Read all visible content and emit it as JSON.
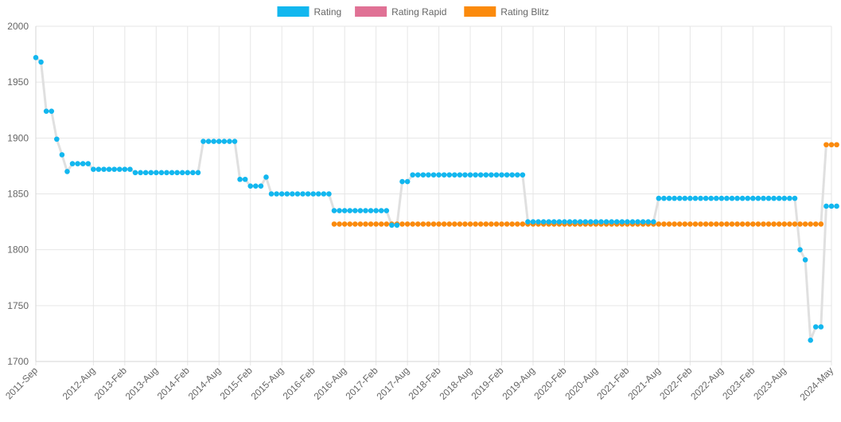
{
  "chart_data": {
    "type": "line",
    "title": "",
    "xlabel": "",
    "ylabel": "",
    "ylim": [
      1700,
      2000
    ],
    "yticks": [
      1700,
      1750,
      1800,
      1850,
      1900,
      1950,
      2000
    ],
    "x_start": "2011-Sep",
    "x_end": "2024-May",
    "xtick_labels": [
      "2011-Sep",
      "2012-Aug",
      "2013-Feb",
      "2013-Aug",
      "2014-Feb",
      "2014-Aug",
      "2015-Feb",
      "2015-Aug",
      "2016-Feb",
      "2016-Aug",
      "2017-Feb",
      "2017-Aug",
      "2018-Feb",
      "2018-Aug",
      "2019-Feb",
      "2019-Aug",
      "2020-Feb",
      "2020-Aug",
      "2021-Feb",
      "2021-Aug",
      "2022-Feb",
      "2022-Aug",
      "2023-Feb",
      "2023-Aug",
      "2024-May"
    ],
    "grid": true,
    "legend_position": "top-center",
    "series": [
      {
        "name": "Rating",
        "color": "#12b7ef",
        "line_color": "#e0e0e0",
        "points": [
          [
            "2011-Sep",
            1972
          ],
          [
            "2011-Oct",
            1968
          ],
          [
            "2011-Nov",
            1924
          ],
          [
            "2011-Dec",
            1924
          ],
          [
            "2012-Jan",
            1899
          ],
          [
            "2012-Feb",
            1885
          ],
          [
            "2012-Mar",
            1870
          ],
          [
            "2012-Apr",
            1877
          ],
          [
            "2012-May",
            1877
          ],
          [
            "2012-Jun",
            1877
          ],
          [
            "2012-Jul",
            1877
          ],
          [
            "2012-Aug",
            1872
          ],
          [
            "2012-Sep",
            1872
          ],
          [
            "2012-Oct",
            1872
          ],
          [
            "2012-Nov",
            1872
          ],
          [
            "2012-Dec",
            1872
          ],
          [
            "2013-Jan",
            1872
          ],
          [
            "2013-Feb",
            1872
          ],
          [
            "2013-Mar",
            1872
          ],
          [
            "2013-Apr",
            1869
          ],
          [
            "2013-May",
            1869
          ],
          [
            "2013-Jun",
            1869
          ],
          [
            "2013-Jul",
            1869
          ],
          [
            "2013-Aug",
            1869
          ],
          [
            "2013-Sep",
            1869
          ],
          [
            "2013-Oct",
            1869
          ],
          [
            "2013-Nov",
            1869
          ],
          [
            "2013-Dec",
            1869
          ],
          [
            "2014-Jan",
            1869
          ],
          [
            "2014-Feb",
            1869
          ],
          [
            "2014-Mar",
            1869
          ],
          [
            "2014-Apr",
            1869
          ],
          [
            "2014-May",
            1897
          ],
          [
            "2014-Jun",
            1897
          ],
          [
            "2014-Jul",
            1897
          ],
          [
            "2014-Aug",
            1897
          ],
          [
            "2014-Sep",
            1897
          ],
          [
            "2014-Oct",
            1897
          ],
          [
            "2014-Nov",
            1897
          ],
          [
            "2014-Dec",
            1863
          ],
          [
            "2015-Jan",
            1863
          ],
          [
            "2015-Feb",
            1857
          ],
          [
            "2015-Mar",
            1857
          ],
          [
            "2015-Apr",
            1857
          ],
          [
            "2015-May",
            1865
          ],
          [
            "2015-Jun",
            1850
          ],
          [
            "2015-Jul",
            1850
          ],
          [
            "2015-Aug",
            1850
          ],
          [
            "2015-Sep",
            1850
          ],
          [
            "2015-Oct",
            1850
          ],
          [
            "2015-Nov",
            1850
          ],
          [
            "2015-Dec",
            1850
          ],
          [
            "2016-Jan",
            1850
          ],
          [
            "2016-Feb",
            1850
          ],
          [
            "2016-Mar",
            1850
          ],
          [
            "2016-Apr",
            1850
          ],
          [
            "2016-May",
            1850
          ],
          [
            "2016-Jun",
            1835
          ],
          [
            "2016-Jul",
            1835
          ],
          [
            "2016-Aug",
            1835
          ],
          [
            "2016-Sep",
            1835
          ],
          [
            "2016-Oct",
            1835
          ],
          [
            "2016-Nov",
            1835
          ],
          [
            "2016-Dec",
            1835
          ],
          [
            "2017-Jan",
            1835
          ],
          [
            "2017-Feb",
            1835
          ],
          [
            "2017-Mar",
            1835
          ],
          [
            "2017-Apr",
            1835
          ],
          [
            "2017-May",
            1822
          ],
          [
            "2017-Jun",
            1822
          ],
          [
            "2017-Jul",
            1861
          ],
          [
            "2017-Aug",
            1861
          ],
          [
            "2017-Sep",
            1867
          ],
          [
            "2017-Oct",
            1867
          ],
          [
            "2017-Nov",
            1867
          ],
          [
            "2017-Dec",
            1867
          ],
          [
            "2018-Jan",
            1867
          ],
          [
            "2018-Feb",
            1867
          ],
          [
            "2018-Mar",
            1867
          ],
          [
            "2018-Apr",
            1867
          ],
          [
            "2018-May",
            1867
          ],
          [
            "2018-Jun",
            1867
          ],
          [
            "2018-Jul",
            1867
          ],
          [
            "2018-Aug",
            1867
          ],
          [
            "2018-Sep",
            1867
          ],
          [
            "2018-Oct",
            1867
          ],
          [
            "2018-Nov",
            1867
          ],
          [
            "2018-Dec",
            1867
          ],
          [
            "2019-Jan",
            1867
          ],
          [
            "2019-Feb",
            1867
          ],
          [
            "2019-Mar",
            1867
          ],
          [
            "2019-Apr",
            1867
          ],
          [
            "2019-May",
            1867
          ],
          [
            "2019-Jun",
            1867
          ],
          [
            "2019-Jul",
            1825
          ],
          [
            "2019-Aug",
            1825
          ],
          [
            "2019-Sep",
            1825
          ],
          [
            "2019-Oct",
            1825
          ],
          [
            "2019-Nov",
            1825
          ],
          [
            "2019-Dec",
            1825
          ],
          [
            "2020-Jan",
            1825
          ],
          [
            "2020-Feb",
            1825
          ],
          [
            "2020-Mar",
            1825
          ],
          [
            "2020-Apr",
            1825
          ],
          [
            "2020-May",
            1825
          ],
          [
            "2020-Jun",
            1825
          ],
          [
            "2020-Jul",
            1825
          ],
          [
            "2020-Aug",
            1825
          ],
          [
            "2020-Sep",
            1825
          ],
          [
            "2020-Oct",
            1825
          ],
          [
            "2020-Nov",
            1825
          ],
          [
            "2020-Dec",
            1825
          ],
          [
            "2021-Jan",
            1825
          ],
          [
            "2021-Feb",
            1825
          ],
          [
            "2021-Mar",
            1825
          ],
          [
            "2021-Apr",
            1825
          ],
          [
            "2021-May",
            1825
          ],
          [
            "2021-Jun",
            1825
          ],
          [
            "2021-Jul",
            1825
          ],
          [
            "2021-Aug",
            1846
          ],
          [
            "2021-Sep",
            1846
          ],
          [
            "2021-Oct",
            1846
          ],
          [
            "2021-Nov",
            1846
          ],
          [
            "2021-Dec",
            1846
          ],
          [
            "2022-Jan",
            1846
          ],
          [
            "2022-Feb",
            1846
          ],
          [
            "2022-Mar",
            1846
          ],
          [
            "2022-Apr",
            1846
          ],
          [
            "2022-May",
            1846
          ],
          [
            "2022-Jun",
            1846
          ],
          [
            "2022-Jul",
            1846
          ],
          [
            "2022-Aug",
            1846
          ],
          [
            "2022-Sep",
            1846
          ],
          [
            "2022-Oct",
            1846
          ],
          [
            "2022-Nov",
            1846
          ],
          [
            "2022-Dec",
            1846
          ],
          [
            "2023-Jan",
            1846
          ],
          [
            "2023-Feb",
            1846
          ],
          [
            "2023-Mar",
            1846
          ],
          [
            "2023-Apr",
            1846
          ],
          [
            "2023-May",
            1846
          ],
          [
            "2023-Jun",
            1846
          ],
          [
            "2023-Jul",
            1846
          ],
          [
            "2023-Aug",
            1846
          ],
          [
            "2023-Sep",
            1846
          ],
          [
            "2023-Oct",
            1846
          ],
          [
            "2023-Nov",
            1800
          ],
          [
            "2023-Dec",
            1791
          ],
          [
            "2024-Jan",
            1719
          ],
          [
            "2024-Feb",
            1731
          ],
          [
            "2024-Mar",
            1731
          ],
          [
            "2024-Apr",
            1839
          ],
          [
            "2024-May",
            1839
          ],
          [
            "2024-Jun",
            1839
          ]
        ]
      },
      {
        "name": "Rating Rapid",
        "color": "#e07195",
        "line_color": "#e07195",
        "points": []
      },
      {
        "name": "Rating Blitz",
        "color": "#fb8a0c",
        "line_color": "#e0e0e0",
        "points": [
          [
            "2016-Jun",
            1823
          ],
          [
            "2016-Jul",
            1823
          ],
          [
            "2016-Aug",
            1823
          ],
          [
            "2016-Sep",
            1823
          ],
          [
            "2016-Oct",
            1823
          ],
          [
            "2016-Nov",
            1823
          ],
          [
            "2016-Dec",
            1823
          ],
          [
            "2017-Jan",
            1823
          ],
          [
            "2017-Feb",
            1823
          ],
          [
            "2017-Mar",
            1823
          ],
          [
            "2017-Apr",
            1823
          ],
          [
            "2017-May",
            1823
          ],
          [
            "2017-Jun",
            1823
          ],
          [
            "2017-Jul",
            1823
          ],
          [
            "2017-Aug",
            1823
          ],
          [
            "2017-Sep",
            1823
          ],
          [
            "2017-Oct",
            1823
          ],
          [
            "2017-Nov",
            1823
          ],
          [
            "2017-Dec",
            1823
          ],
          [
            "2018-Jan",
            1823
          ],
          [
            "2018-Feb",
            1823
          ],
          [
            "2018-Mar",
            1823
          ],
          [
            "2018-Apr",
            1823
          ],
          [
            "2018-May",
            1823
          ],
          [
            "2018-Jun",
            1823
          ],
          [
            "2018-Jul",
            1823
          ],
          [
            "2018-Aug",
            1823
          ],
          [
            "2018-Sep",
            1823
          ],
          [
            "2018-Oct",
            1823
          ],
          [
            "2018-Nov",
            1823
          ],
          [
            "2018-Dec",
            1823
          ],
          [
            "2019-Jan",
            1823
          ],
          [
            "2019-Feb",
            1823
          ],
          [
            "2019-Mar",
            1823
          ],
          [
            "2019-Apr",
            1823
          ],
          [
            "2019-May",
            1823
          ],
          [
            "2019-Jun",
            1823
          ],
          [
            "2019-Jul",
            1823
          ],
          [
            "2019-Aug",
            1823
          ],
          [
            "2019-Sep",
            1823
          ],
          [
            "2019-Oct",
            1823
          ],
          [
            "2019-Nov",
            1823
          ],
          [
            "2019-Dec",
            1823
          ],
          [
            "2020-Jan",
            1823
          ],
          [
            "2020-Feb",
            1823
          ],
          [
            "2020-Mar",
            1823
          ],
          [
            "2020-Apr",
            1823
          ],
          [
            "2020-May",
            1823
          ],
          [
            "2020-Jun",
            1823
          ],
          [
            "2020-Jul",
            1823
          ],
          [
            "2020-Aug",
            1823
          ],
          [
            "2020-Sep",
            1823
          ],
          [
            "2020-Oct",
            1823
          ],
          [
            "2020-Nov",
            1823
          ],
          [
            "2020-Dec",
            1823
          ],
          [
            "2021-Jan",
            1823
          ],
          [
            "2021-Feb",
            1823
          ],
          [
            "2021-Mar",
            1823
          ],
          [
            "2021-Apr",
            1823
          ],
          [
            "2021-May",
            1823
          ],
          [
            "2021-Jun",
            1823
          ],
          [
            "2021-Jul",
            1823
          ],
          [
            "2021-Aug",
            1823
          ],
          [
            "2021-Sep",
            1823
          ],
          [
            "2021-Oct",
            1823
          ],
          [
            "2021-Nov",
            1823
          ],
          [
            "2021-Dec",
            1823
          ],
          [
            "2022-Jan",
            1823
          ],
          [
            "2022-Feb",
            1823
          ],
          [
            "2022-Mar",
            1823
          ],
          [
            "2022-Apr",
            1823
          ],
          [
            "2022-May",
            1823
          ],
          [
            "2022-Jun",
            1823
          ],
          [
            "2022-Jul",
            1823
          ],
          [
            "2022-Aug",
            1823
          ],
          [
            "2022-Sep",
            1823
          ],
          [
            "2022-Oct",
            1823
          ],
          [
            "2022-Nov",
            1823
          ],
          [
            "2022-Dec",
            1823
          ],
          [
            "2023-Jan",
            1823
          ],
          [
            "2023-Feb",
            1823
          ],
          [
            "2023-Mar",
            1823
          ],
          [
            "2023-Apr",
            1823
          ],
          [
            "2023-May",
            1823
          ],
          [
            "2023-Jun",
            1823
          ],
          [
            "2023-Jul",
            1823
          ],
          [
            "2023-Aug",
            1823
          ],
          [
            "2023-Sep",
            1823
          ],
          [
            "2023-Oct",
            1823
          ],
          [
            "2023-Nov",
            1823
          ],
          [
            "2023-Dec",
            1823
          ],
          [
            "2024-Jan",
            1823
          ],
          [
            "2024-Feb",
            1823
          ],
          [
            "2024-Mar",
            1823
          ],
          [
            "2024-Apr",
            1894
          ],
          [
            "2024-May",
            1894
          ],
          [
            "2024-Jun",
            1894
          ]
        ]
      }
    ]
  }
}
